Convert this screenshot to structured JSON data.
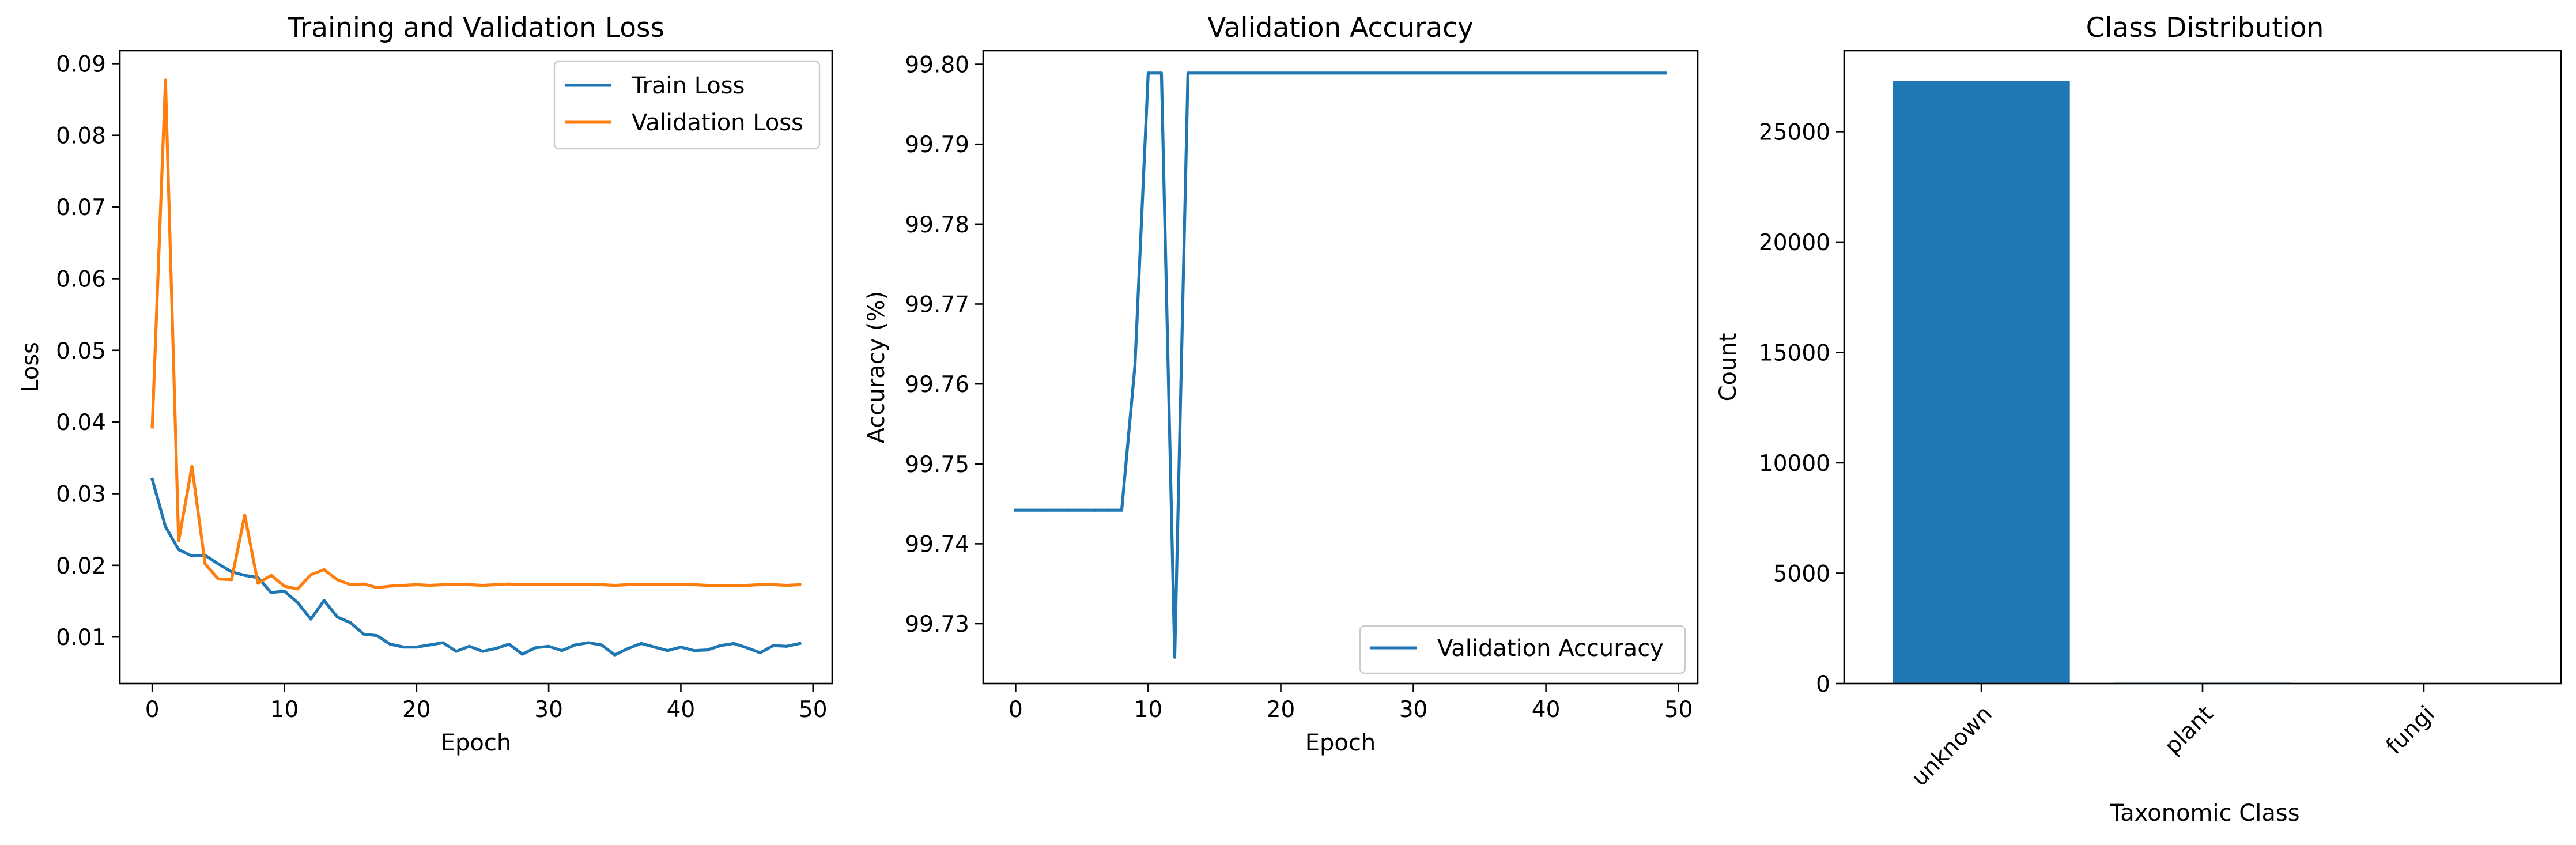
{
  "colors": {
    "train": "#1f77b4",
    "validation": "#ff7f0e",
    "bar": "#1f77b4"
  },
  "chart_data": [
    {
      "type": "line",
      "title": "Training and Validation Loss",
      "xlabel": "Epoch",
      "ylabel": "Loss",
      "xlim": [
        -2.45,
        51.45
      ],
      "ylim": [
        0.0035,
        0.0918
      ],
      "xticks": [
        0,
        10,
        20,
        30,
        40,
        50
      ],
      "yticks": [
        0.01,
        0.02,
        0.03,
        0.04,
        0.05,
        0.06,
        0.07,
        0.08,
        0.09
      ],
      "x": [
        0,
        1,
        2,
        3,
        4,
        5,
        6,
        7,
        8,
        9,
        10,
        11,
        12,
        13,
        14,
        15,
        16,
        17,
        18,
        19,
        20,
        21,
        22,
        23,
        24,
        25,
        26,
        27,
        28,
        29,
        30,
        31,
        32,
        33,
        34,
        35,
        36,
        37,
        38,
        39,
        40,
        41,
        42,
        43,
        44,
        45,
        46,
        47,
        48,
        49
      ],
      "legend_position": "upper right",
      "series": [
        {
          "name": "Train Loss",
          "color_key": "train",
          "values": [
            0.032,
            0.0254,
            0.0222,
            0.0213,
            0.0214,
            0.0202,
            0.0191,
            0.0186,
            0.0183,
            0.0162,
            0.0164,
            0.0148,
            0.0125,
            0.0151,
            0.0128,
            0.012,
            0.0104,
            0.0102,
            0.009,
            0.0086,
            0.0086,
            0.0089,
            0.0092,
            0.008,
            0.0087,
            0.008,
            0.0084,
            0.009,
            0.0076,
            0.0085,
            0.0087,
            0.0081,
            0.0089,
            0.0092,
            0.0089,
            0.0075,
            0.0084,
            0.0091,
            0.0086,
            0.0081,
            0.0086,
            0.0081,
            0.0082,
            0.0088,
            0.0091,
            0.0085,
            0.0078,
            0.0088,
            0.0087,
            0.0091
          ]
        },
        {
          "name": "Validation Loss",
          "color_key": "validation",
          "values": [
            0.0393,
            0.0877,
            0.0234,
            0.0338,
            0.0202,
            0.0181,
            0.018,
            0.027,
            0.0175,
            0.0186,
            0.0171,
            0.0167,
            0.0187,
            0.0194,
            0.018,
            0.0173,
            0.0174,
            0.0169,
            0.0171,
            0.0172,
            0.0173,
            0.0172,
            0.0173,
            0.0173,
            0.0173,
            0.0172,
            0.0173,
            0.0174,
            0.0173,
            0.0173,
            0.0173,
            0.0173,
            0.0173,
            0.0173,
            0.0173,
            0.0172,
            0.0173,
            0.0173,
            0.0173,
            0.0173,
            0.0173,
            0.0173,
            0.0172,
            0.0172,
            0.0172,
            0.0172,
            0.0173,
            0.0173,
            0.0172,
            0.0173
          ]
        }
      ]
    },
    {
      "type": "line",
      "title": "Validation Accuracy",
      "xlabel": "Epoch",
      "ylabel": "Accuracy (%)",
      "xlim": [
        -2.45,
        51.45
      ],
      "ylim": [
        99.7225,
        99.8017
      ],
      "xticks": [
        0,
        10,
        20,
        30,
        40,
        50
      ],
      "yticks": [
        99.73,
        99.74,
        99.75,
        99.76,
        99.77,
        99.78,
        99.79,
        99.8
      ],
      "ytick_labels": [
        "99.73",
        "99.74",
        "99.75",
        "99.76",
        "99.77",
        "99.78",
        "99.79",
        "99.80"
      ],
      "x": [
        0,
        1,
        2,
        3,
        4,
        5,
        6,
        7,
        8,
        9,
        10,
        11,
        12,
        13,
        14,
        15,
        16,
        17,
        18,
        19,
        20,
        21,
        22,
        23,
        24,
        25,
        26,
        27,
        28,
        29,
        30,
        31,
        32,
        33,
        34,
        35,
        36,
        37,
        38,
        39,
        40,
        41,
        42,
        43,
        44,
        45,
        46,
        47,
        48,
        49
      ],
      "legend_position": "lower right",
      "series": [
        {
          "name": "Validation Accuracy",
          "color_key": "train",
          "values": [
            99.7442,
            99.7442,
            99.7442,
            99.7442,
            99.7442,
            99.7442,
            99.7442,
            99.7442,
            99.7442,
            99.7623,
            99.7989,
            99.7989,
            99.7258,
            99.7989,
            99.7989,
            99.7989,
            99.7989,
            99.7989,
            99.7989,
            99.7989,
            99.7989,
            99.7989,
            99.7989,
            99.7989,
            99.7989,
            99.7989,
            99.7989,
            99.7989,
            99.7989,
            99.7989,
            99.7989,
            99.7989,
            99.7989,
            99.7989,
            99.7989,
            99.7989,
            99.7989,
            99.7989,
            99.7989,
            99.7989,
            99.7989,
            99.7989,
            99.7989,
            99.7989,
            99.7989,
            99.7989,
            99.7989,
            99.7989,
            99.7989,
            99.7989
          ]
        }
      ]
    },
    {
      "type": "bar",
      "title": "Class Distribution",
      "xlabel": "Taxonomic Class",
      "ylabel": "Count",
      "categories": [
        "unknown",
        "plant",
        "fungi"
      ],
      "values": [
        27300,
        40,
        5
      ],
      "ylim": [
        0,
        28665
      ],
      "yticks": [
        0,
        5000,
        10000,
        15000,
        20000,
        25000
      ],
      "tick_rotation": 45,
      "color_key": "bar"
    }
  ]
}
